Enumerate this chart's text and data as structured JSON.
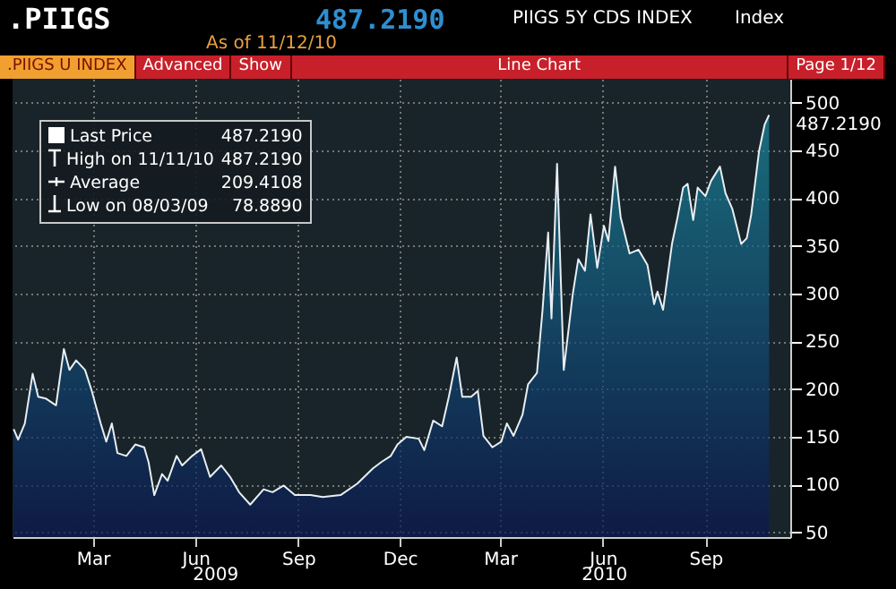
{
  "chart_data": {
    "type": "area",
    "title": ".PIIGS",
    "subtitle": "PIIGS 5Y CDS INDEX",
    "annotations": [
      "487.2190",
      "Index",
      "As of 11/12/10",
      ".PIIGS U INDEX",
      "Advanced",
      "Show",
      "Line Chart",
      "Page 1/12",
      "487.2190",
      "High on 11/11/10",
      "487.2190",
      "Average",
      "209.4108",
      "Low on 08/03/09",
      "78.8890",
      "2009",
      "2010",
      {
        "text": "487.2190",
        "x": "2010-11-11",
        "y": 487
      }
    ],
    "x": [
      "2009-01-03",
      "2009-01-07",
      "2009-01-13",
      "2009-01-20",
      "2009-01-25",
      "2009-02-01",
      "2009-02-10",
      "2009-02-17",
      "2009-02-22",
      "2009-02-28",
      "2009-03-08",
      "2009-03-14",
      "2009-03-22",
      "2009-03-27",
      "2009-04-01",
      "2009-04-06",
      "2009-04-14",
      "2009-04-22",
      "2009-04-30",
      "2009-05-04",
      "2009-05-09",
      "2009-05-16",
      "2009-05-21",
      "2009-05-29",
      "2009-06-03",
      "2009-06-12",
      "2009-06-20",
      "2009-06-28",
      "2009-07-08",
      "2009-07-16",
      "2009-07-24",
      "2009-08-03",
      "2009-08-15",
      "2009-08-23",
      "2009-09-02",
      "2009-09-12",
      "2009-09-26",
      "2009-10-07",
      "2009-10-23",
      "2009-11-07",
      "2009-11-21",
      "2009-11-29",
      "2009-12-07",
      "2009-12-13",
      "2009-12-21",
      "2010-01-01",
      "2010-01-06",
      "2010-01-14",
      "2010-01-22",
      "2010-01-28",
      "2010-02-04",
      "2010-02-09",
      "2010-02-17",
      "2010-02-23",
      "2010-02-28",
      "2010-03-08",
      "2010-03-16",
      "2010-03-21",
      "2010-03-27",
      "2010-04-04",
      "2010-04-09",
      "2010-04-17",
      "2010-04-22",
      "2010-04-27",
      "2010-04-30",
      "2010-05-05",
      "2010-05-11",
      "2010-05-19",
      "2010-05-24",
      "2010-05-30",
      "2010-06-04",
      "2010-06-10",
      "2010-06-16",
      "2010-06-20",
      "2010-06-26",
      "2010-07-01",
      "2010-07-09",
      "2010-07-17",
      "2010-07-25",
      "2010-07-31",
      "2010-08-03",
      "2010-08-08",
      "2010-08-16",
      "2010-08-21",
      "2010-08-26",
      "2010-08-30",
      "2010-09-04",
      "2010-09-08",
      "2010-09-15",
      "2010-09-20",
      "2010-09-28",
      "2010-10-03",
      "2010-10-09",
      "2010-10-17",
      "2010-10-22",
      "2010-10-26",
      "2010-11-02",
      "2010-11-07",
      "2010-11-11"
    ],
    "series": [
      {
        "name": "Last Price",
        "color": "#1a8ca0",
        "values": [
          158,
          147,
          164,
          216,
          192,
          190,
          183,
          242,
          220,
          230,
          220,
          198,
          164,
          145,
          164,
          133,
          130,
          142,
          139,
          123,
          89,
          111,
          104,
          130,
          120,
          130,
          137,
          108,
          120,
          108,
          92,
          79,
          95,
          92,
          99,
          89,
          89,
          87,
          89,
          101,
          117,
          124,
          130,
          142,
          150,
          148,
          136,
          167,
          161,
          192,
          233,
          192,
          192,
          198,
          151,
          139,
          145,
          164,
          151,
          173,
          205,
          217,
          283,
          364,
          274,
          436,
          220,
          299,
          336,
          324,
          383,
          327,
          371,
          355,
          433,
          380,
          342,
          346,
          330,
          289,
          302,
          283,
          352,
          380,
          411,
          415,
          377,
          411,
          402,
          418,
          433,
          405,
          389,
          352,
          358,
          383,
          449,
          477,
          487
        ]
      }
    ],
    "xlim": [
      "2009-01-02",
      "2010-11-30"
    ],
    "xticks": [
      {
        "value": "2009-03-15",
        "label": "Mar"
      },
      {
        "value": "2009-06-15",
        "label": "Jun"
      },
      {
        "value": "2009-09-15",
        "label": "Sep"
      },
      {
        "value": "2009-12-15",
        "label": "Dec"
      },
      {
        "value": "2010-03-15",
        "label": "Mar"
      },
      {
        "value": "2010-06-15",
        "label": "Jun"
      },
      {
        "value": "2010-09-15",
        "label": "Sep"
      }
    ],
    "ylim": [
      45,
      525
    ],
    "yticks": [
      50,
      100,
      150,
      200,
      250,
      300,
      350,
      400,
      450,
      500
    ],
    "grid": true,
    "legend": "top left"
  }
}
